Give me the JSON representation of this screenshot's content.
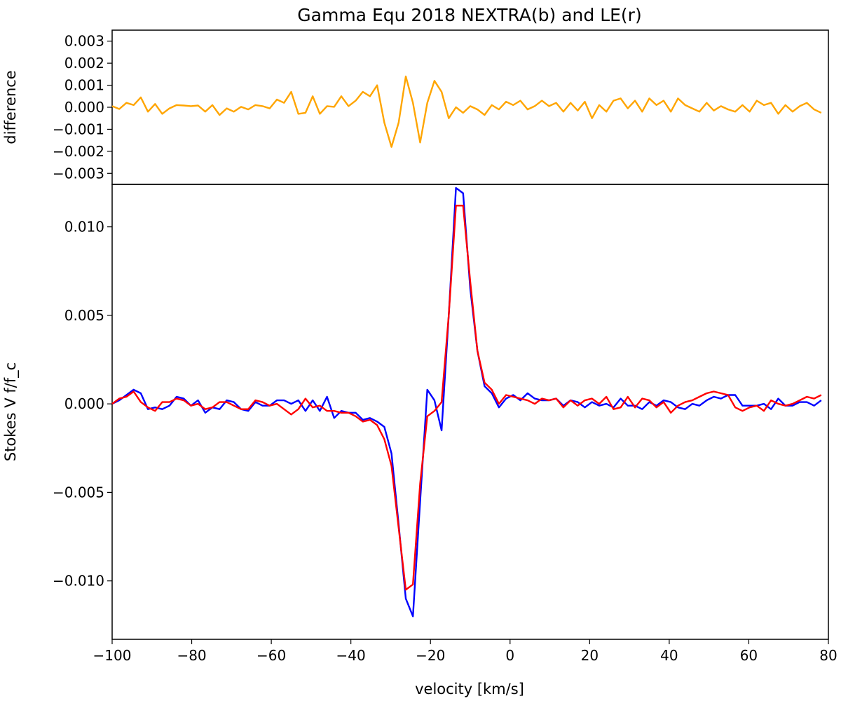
{
  "chart_data": {
    "type": "line",
    "title": "Gamma Equ 2018 NEXTRA(b) and LE(r)",
    "xlabel": "velocity [km/s]",
    "xlim": [
      -100,
      80
    ],
    "xticks": [
      -100,
      -80,
      -60,
      -40,
      -20,
      0,
      20,
      40,
      60,
      80
    ],
    "xtick_labels": [
      "−100",
      "−80",
      "−60",
      "−40",
      "−20",
      "0",
      "20",
      "40",
      "60",
      "80"
    ],
    "grid": false,
    "legend": "none",
    "x": [
      -100,
      -98.2,
      -96.4,
      -94.6,
      -92.8,
      -91,
      -89.2,
      -87.4,
      -85.6,
      -83.8,
      -82,
      -80.2,
      -78.4,
      -76.6,
      -74.8,
      -73,
      -71.2,
      -69.4,
      -67.6,
      -65.8,
      -64,
      -62.2,
      -60.4,
      -58.6,
      -56.8,
      -55,
      -53.2,
      -51.4,
      -49.6,
      -47.8,
      -46,
      -44.2,
      -42.4,
      -40.6,
      -38.8,
      -37,
      -35.2,
      -33.4,
      -31.6,
      -29.8,
      -28,
      -26.2,
      -24.4,
      -22.6,
      -20.8,
      -19,
      -17.2,
      -15.4,
      -13.6,
      -11.8,
      -10,
      -8.2,
      -6.4,
      -4.6,
      -2.8,
      -1,
      0.8,
      2.6,
      4.4,
      6.2,
      8,
      9.8,
      11.6,
      13.4,
      15.2,
      17,
      18.8,
      20.6,
      22.4,
      24.2,
      26,
      27.8,
      29.6,
      31.4,
      33.2,
      35,
      36.8,
      38.6,
      40.4,
      42.2,
      44,
      45.8,
      47.6,
      49.4,
      51.2,
      53,
      54.8,
      56.6,
      58.4,
      60.2,
      62,
      63.8,
      65.6,
      67.4,
      69.2,
      71,
      72.8,
      74.6,
      76.4,
      78.2,
      80
    ],
    "panels": [
      {
        "name": "difference-panel",
        "ylabel": "difference",
        "ylim": [
          -0.0035,
          0.0035
        ],
        "yticks": [
          -0.003,
          -0.002,
          -0.001,
          0,
          0.001,
          0.002,
          0.003
        ],
        "ytick_labels": [
          "−0.003",
          "−0.002",
          "−0.001",
          "0.000",
          "0.001",
          "0.002",
          "0.003"
        ],
        "series": [
          {
            "color": "#ffa500",
            "values": [
              5e-05,
              -8e-05,
              0.0002,
              0.0001,
              0.00045,
              -0.0002,
              0.00015,
              -0.0003,
              -5e-05,
              0.0001,
              8e-05,
              5e-05,
              8e-05,
              -0.0002,
              0.0001,
              -0.00035,
              -5e-05,
              -0.0002,
              2e-05,
              -0.0001,
              0.0001,
              5e-05,
              -5e-05,
              0.00035,
              0.0002,
              0.0007,
              -0.0003,
              -0.00025,
              0.0005,
              -0.0003,
              5e-05,
              2e-05,
              0.0005,
              5e-05,
              0.0003,
              0.0007,
              0.0005,
              0.001,
              -0.0007,
              -0.0018,
              -0.0007,
              0.0014,
              0.0002,
              -0.0016,
              0.0002,
              0.0012,
              0.0007,
              -0.0005,
              0.0,
              -0.00025,
              5e-05,
              -0.0001,
              -0.00035,
              0.0001,
              -0.0001,
              0.00025,
              0.0001,
              0.0003,
              -0.0001,
              5e-05,
              0.0003,
              5e-05,
              0.0002,
              -0.0002,
              0.0002,
              -0.00015,
              0.00025,
              -0.0005,
              0.0001,
              -0.0002,
              0.0003,
              0.0004,
              -5e-05,
              0.0003,
              -0.0002,
              0.0004,
              0.0001,
              0.0003,
              -0.0002,
              0.0004,
              0.0001,
              -5e-05,
              -0.0002,
              0.0002,
              -0.00015,
              5e-05,
              -0.0001,
              -0.0002,
              0.0001,
              -0.0002,
              0.0003,
              0.0001,
              0.0002,
              -0.0003,
              0.0001,
              -0.0002,
              5e-05,
              0.0002,
              -0.0001,
              -0.00025
            ]
          }
        ]
      },
      {
        "name": "stokes-panel",
        "ylabel": "Stokes V f/f_c",
        "ylim": [
          -0.0133,
          0.0124
        ],
        "yticks": [
          -0.01,
          -0.005,
          0,
          0.005,
          0.01
        ],
        "ytick_labels": [
          "−0.010",
          "−0.005",
          "0.000",
          "0.005",
          "0.010"
        ],
        "series": [
          {
            "color": "#0000ff",
            "values": [
              0.0,
              0.0002,
              0.0005,
              0.0008,
              0.0006,
              -0.0003,
              -0.0002,
              -0.0003,
              -0.0001,
              0.0004,
              0.0003,
              -0.0001,
              0.0002,
              -0.0005,
              -0.0002,
              -0.0003,
              0.0002,
              0.0001,
              -0.0003,
              -0.0004,
              0.0001,
              -0.0001,
              -0.0001,
              0.0002,
              0.0002,
              0.0,
              0.0002,
              -0.0004,
              0.0002,
              -0.0004,
              0.0004,
              -0.0008,
              -0.0004,
              -0.0005,
              -0.0005,
              -0.0009,
              -0.0008,
              -0.001,
              -0.0013,
              -0.0028,
              -0.0068,
              -0.011,
              -0.012,
              -0.0055,
              0.0008,
              0.0002,
              -0.0015,
              0.005,
              0.0122,
              0.0119,
              0.0065,
              0.003,
              0.001,
              0.0006,
              -0.0002,
              0.0003,
              0.0005,
              0.0002,
              0.0006,
              0.0003,
              0.0002,
              0.0002,
              0.0003,
              -0.0001,
              0.0002,
              0.0001,
              -0.0002,
              0.0001,
              -0.0001,
              0.0,
              -0.0002,
              0.0003,
              -0.0001,
              -0.0001,
              -0.0003,
              0.0001,
              -0.0001,
              0.0002,
              0.0001,
              -0.0002,
              -0.0003,
              0.0,
              -0.0001,
              0.0002,
              0.0004,
              0.0003,
              0.0005,
              0.0005,
              -0.0001,
              -0.0001,
              -0.0001,
              0.0,
              -0.0003,
              0.0003,
              -0.0001,
              -0.0001,
              0.0001,
              0.0001,
              -0.0001,
              0.0002
            ]
          },
          {
            "color": "#ff0000",
            "values": [
              0.0,
              0.0003,
              0.0004,
              0.0007,
              0.0001,
              -0.0002,
              -0.0004,
              0.0001,
              0.0001,
              0.0003,
              0.0002,
              -0.0001,
              0.0,
              -0.0003,
              -0.0002,
              0.0001,
              0.0001,
              -0.0001,
              -0.0003,
              -0.0003,
              0.0002,
              0.0001,
              -0.0001,
              0.0,
              -0.0003,
              -0.0006,
              -0.0003,
              0.0003,
              -0.0002,
              -0.0001,
              -0.0004,
              -0.0004,
              -0.0005,
              -0.0005,
              -0.0007,
              -0.001,
              -0.0009,
              -0.0012,
              -0.002,
              -0.0035,
              -0.007,
              -0.0105,
              -0.0102,
              -0.0045,
              -0.0007,
              -0.0004,
              0.0001,
              0.005,
              0.0112,
              0.0112,
              0.0069,
              0.003,
              0.0012,
              0.0008,
              0.0,
              0.0005,
              0.0004,
              0.0003,
              0.0002,
              0.0,
              0.0003,
              0.0002,
              0.0003,
              -0.0002,
              0.0002,
              -0.0001,
              0.0002,
              0.0003,
              0.0,
              0.0004,
              -0.0003,
              -0.0002,
              0.0004,
              -0.0002,
              0.0003,
              0.0002,
              -0.0002,
              0.0001,
              -0.0005,
              -0.0001,
              0.0001,
              0.0002,
              0.0004,
              0.0006,
              0.0007,
              0.0006,
              0.0005,
              -0.0002,
              -0.0004,
              -0.0002,
              -0.0001,
              -0.0004,
              0.0002,
              0.0,
              -0.0001,
              0.0,
              0.0002,
              0.0004,
              0.0003,
              0.0005
            ]
          }
        ]
      }
    ]
  }
}
